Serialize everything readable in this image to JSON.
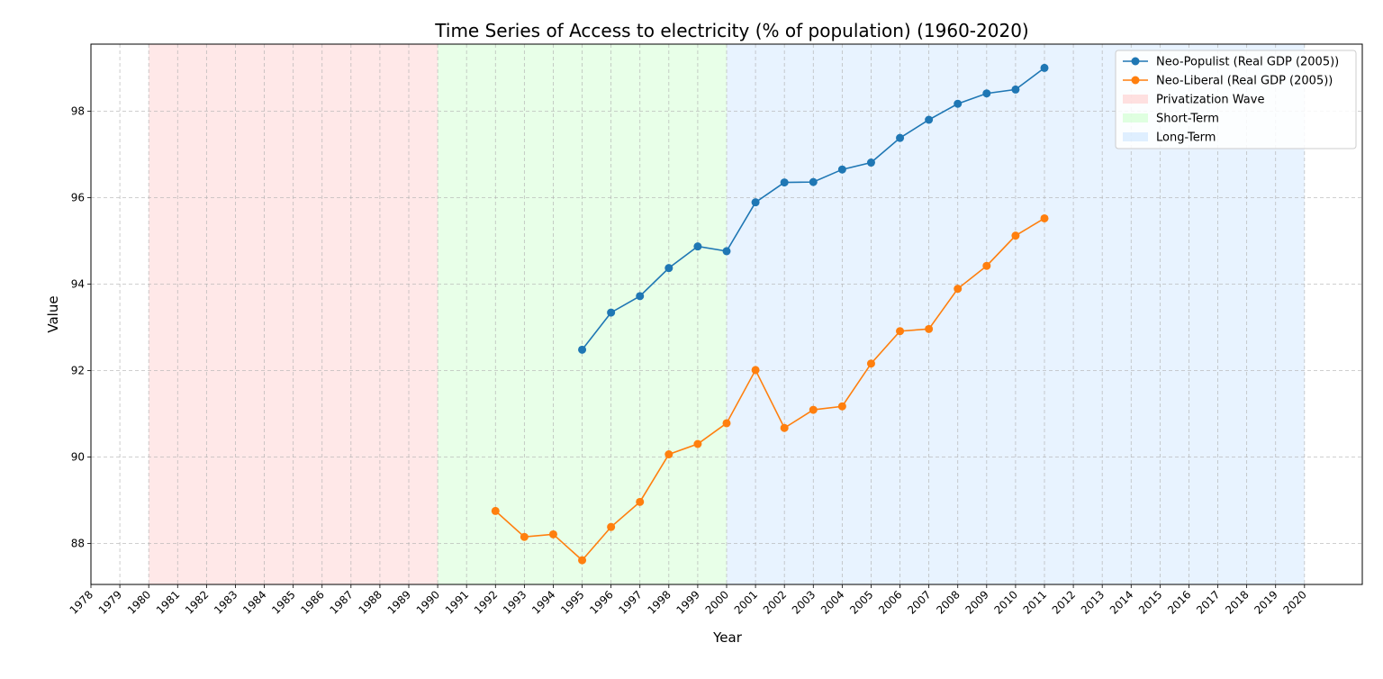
{
  "chart_data": {
    "type": "line",
    "title": "Time Series of Access to electricity (% of population) (1960-2020)",
    "xlabel": "Year",
    "ylabel": "Value",
    "xlim": [
      1978,
      2022
    ],
    "ylim": [
      87.05,
      99.55
    ],
    "xticks": [
      1978,
      1979,
      1980,
      1981,
      1982,
      1983,
      1984,
      1985,
      1986,
      1987,
      1988,
      1989,
      1990,
      1991,
      1992,
      1993,
      1994,
      1995,
      1996,
      1997,
      1998,
      1999,
      2000,
      2001,
      2002,
      2003,
      2004,
      2005,
      2006,
      2007,
      2008,
      2009,
      2010,
      2011,
      2012,
      2013,
      2014,
      2015,
      2016,
      2017,
      2018,
      2019,
      2020
    ],
    "yticks": [
      88,
      90,
      92,
      94,
      96,
      98
    ],
    "grid": true,
    "legend_position": "top-right",
    "periods": [
      {
        "name": "Privatization Wave",
        "start": 1980,
        "end": 1990,
        "color": "#ffcccc"
      },
      {
        "name": "Short-Term",
        "start": 1990,
        "end": 2000,
        "color": "#ccffcc"
      },
      {
        "name": "Long-Term",
        "start": 2000,
        "end": 2020,
        "color": "#cce5ff"
      }
    ],
    "series": [
      {
        "name": "Neo-Populist (Real GDP (2005))",
        "color": "#1f77b4",
        "x": [
          1995,
          1996,
          1997,
          1998,
          1999,
          2000,
          2001,
          2002,
          2003,
          2004,
          2005,
          2006,
          2007,
          2008,
          2009,
          2010,
          2011
        ],
        "values": [
          92.48,
          93.34,
          93.72,
          94.37,
          94.87,
          94.76,
          95.89,
          96.35,
          96.36,
          96.65,
          96.81,
          97.38,
          97.8,
          98.17,
          98.41,
          98.5,
          99.0
        ]
      },
      {
        "name": "Neo-Liberal (Real GDP (2005))",
        "color": "#ff7f0e",
        "x": [
          1992,
          1993,
          1994,
          1995,
          1996,
          1997,
          1998,
          1999,
          2000,
          2001,
          2002,
          2003,
          2004,
          2005,
          2006,
          2007,
          2008,
          2009,
          2010,
          2011
        ],
        "values": [
          88.75,
          88.15,
          88.21,
          87.61,
          88.38,
          88.96,
          90.06,
          90.3,
          90.78,
          92.01,
          90.67,
          91.09,
          91.17,
          92.16,
          92.91,
          92.96,
          93.89,
          94.42,
          95.12,
          95.52
        ]
      }
    ]
  }
}
